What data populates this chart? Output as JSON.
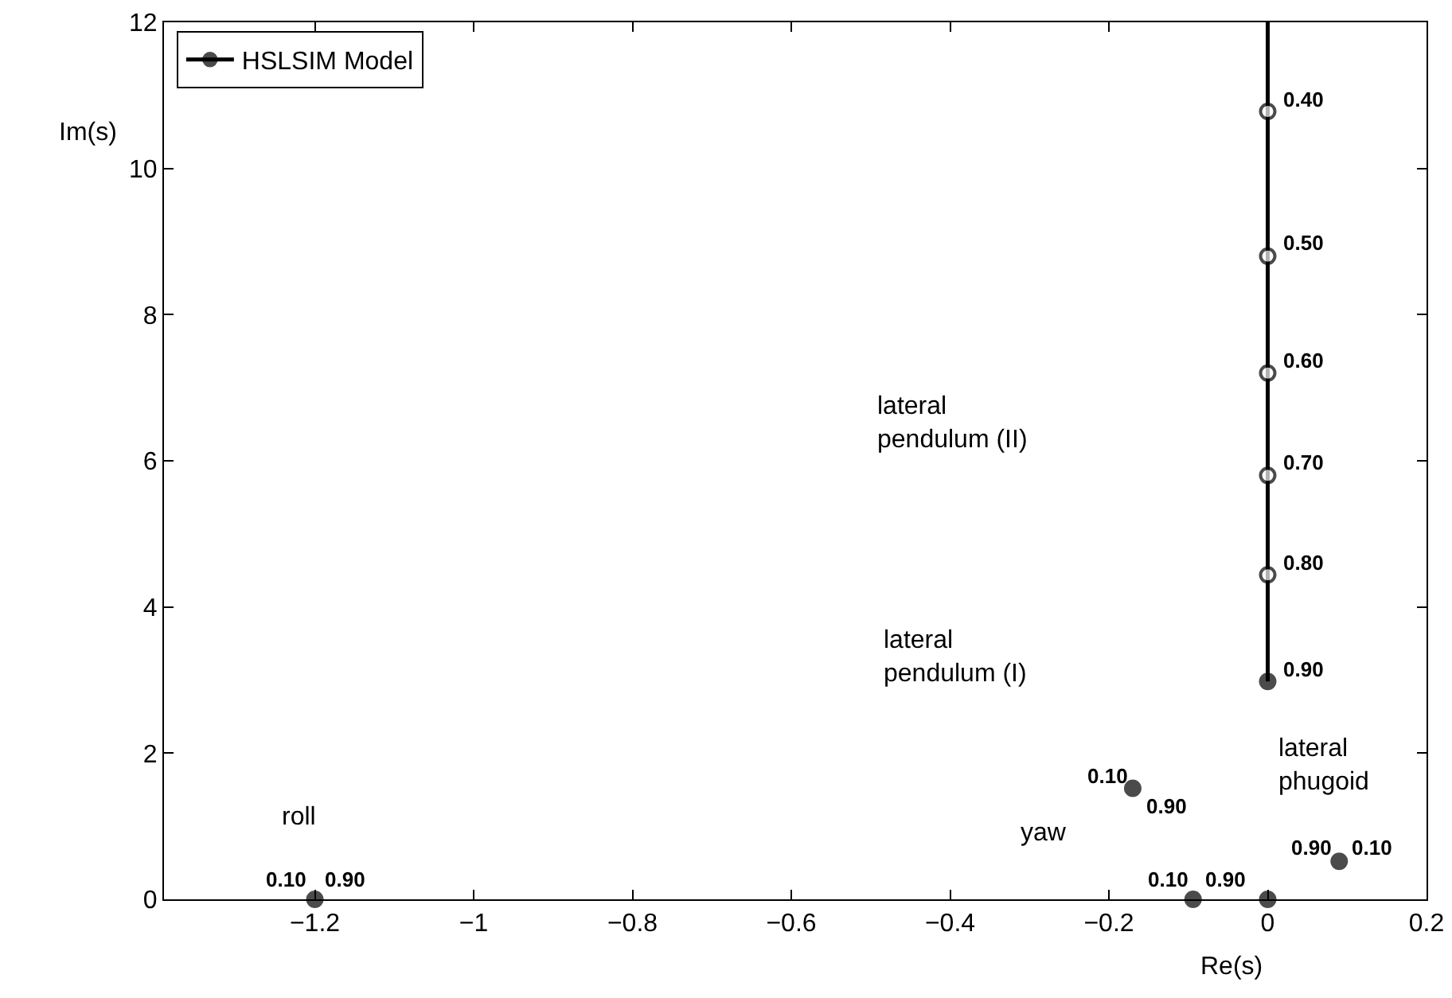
{
  "chart_data": {
    "type": "line",
    "xlabel": "Re(s)",
    "ylabel": "Im(s)",
    "xlim": [
      -1.39,
      0.2
    ],
    "xticks": [
      -1.2,
      -1,
      -0.8,
      -0.6,
      -0.4,
      -0.2,
      0,
      0.2
    ],
    "ylim": [
      0,
      12
    ],
    "yticks": [
      0,
      2,
      4,
      6,
      8,
      10,
      12
    ],
    "legend": "top left",
    "grid": false,
    "marker": "circle",
    "line_style": "solid",
    "series": [
      {
        "name": "HSLSIM Model",
        "color": "#000000",
        "x": [
          0,
          0,
          0,
          0,
          0,
          0,
          0
        ],
        "values": [
          12,
          10.78,
          8.8,
          7.2,
          5.8,
          4.44,
          2.98
        ],
        "colors": [
          null,
          "#ffffff",
          "#ffffff",
          "#ffffff",
          "#ffffff",
          "#ffffff",
          "#000000"
        ]
      },
      {
        "type": "scatter",
        "color": "#000000",
        "x": [
          -1.2,
          -0.17,
          -0.094,
          0,
          0.09
        ],
        "values": [
          0,
          1.52,
          0,
          0,
          0.52
        ]
      }
    ],
    "annotations": [
      {
        "text": "0.40",
        "x": 0,
        "y": 10.78
      },
      {
        "text": "0.50",
        "x": 0,
        "y": 8.8
      },
      {
        "text": "0.60",
        "x": 0,
        "y": 7.2
      },
      {
        "text": "0.70",
        "x": 0,
        "y": 5.8
      },
      {
        "text": "0.80",
        "x": 0,
        "y": 4.44
      },
      {
        "text": "0.90",
        "x": 0,
        "y": 2.98
      },
      {
        "text": "0.10",
        "x": -1.2,
        "y": 0
      },
      {
        "text": "0.90",
        "x": -1.2,
        "y": 0
      },
      {
        "text": "0.10",
        "x": -0.17,
        "y": 1.52
      },
      {
        "text": "0.90",
        "x": -0.17,
        "y": 1.52
      },
      {
        "text": "0.10",
        "x": -0.094,
        "y": 0
      },
      {
        "text": "0.90",
        "x": 0,
        "y": 0
      },
      {
        "text": "0.90",
        "x": 0.09,
        "y": 0.52
      },
      {
        "text": "0.10",
        "x": 0.09,
        "y": 0.52
      },
      "lateral\npendulum (II)",
      "lateral\npendulum (I)",
      {
        "text": "lateral\nphugoid",
        "x": 0.09,
        "y": 0.52
      },
      {
        "text": "roll",
        "x": -1.2,
        "y": 0
      },
      "yaw"
    ]
  }
}
